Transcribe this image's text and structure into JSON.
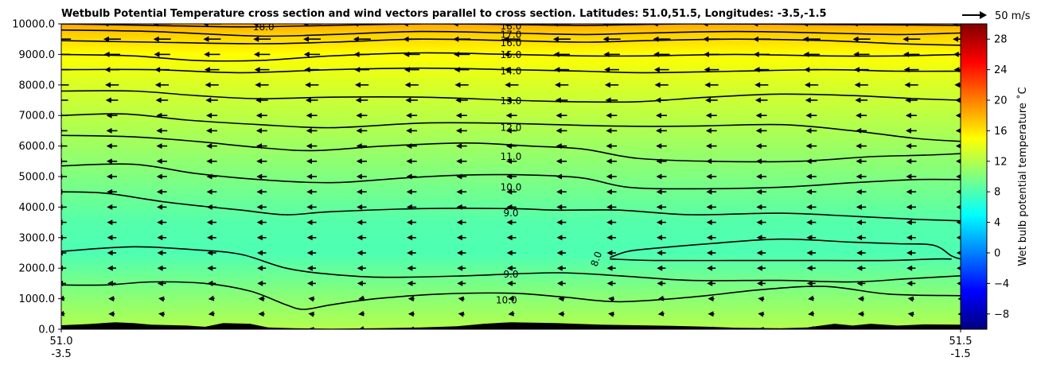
{
  "chart_data": {
    "type": "heatmap",
    "title": "Wetbulb Potential Temperature cross section and wind vectors parallel to cross section. Latitudes: 51.0,51.5, Longitudes: -3.5,-1.5",
    "xlabel": "",
    "ylabel": "",
    "xlim": [
      0,
      1
    ],
    "ylim": [
      0,
      10000
    ],
    "x_ticks": [
      {
        "pos": 0,
        "line1": "51.0",
        "line2": "-3.5"
      },
      {
        "pos": 1,
        "line1": "51.5",
        "line2": "-1.5"
      }
    ],
    "y_ticks": [
      "0.0",
      "1000.0",
      "2000.0",
      "3000.0",
      "4000.0",
      "5000.0",
      "6000.0",
      "7000.0",
      "8000.0",
      "9000.0",
      "10000.0"
    ],
    "colorbar": {
      "label": "Wet bulb potential temperature $^\\circ$C",
      "label_text": "Wet bulb potential temperature ˚C",
      "range": [
        -10,
        30
      ],
      "ticks": [
        "-8",
        "-4",
        "0",
        "4",
        "8",
        "12",
        "16",
        "20",
        "24",
        "28"
      ],
      "colormap": "jet"
    },
    "quiver_key": {
      "label": "50 m/s"
    },
    "wind": {
      "direction": "westward",
      "typical_speed_ms": 30
    },
    "surface_color": "#000000",
    "contours": [
      {
        "label": "10.0",
        "points": [
          [
            0.0,
            1450
          ],
          [
            0.05,
            1450
          ],
          [
            0.1,
            1550
          ],
          [
            0.16,
            1500
          ],
          [
            0.21,
            1250
          ],
          [
            0.25,
            800
          ],
          [
            0.27,
            650
          ],
          [
            0.3,
            800
          ],
          [
            0.35,
            1000
          ],
          [
            0.42,
            1150
          ],
          [
            0.5,
            1180
          ],
          [
            0.56,
            1050
          ],
          [
            0.62,
            900
          ],
          [
            0.7,
            1050
          ],
          [
            0.78,
            1300
          ],
          [
            0.85,
            1400
          ],
          [
            0.92,
            1150
          ],
          [
            1.0,
            1100
          ]
        ]
      },
      {
        "label": "9.0",
        "points": [
          [
            0.0,
            2550
          ],
          [
            0.08,
            2700
          ],
          [
            0.15,
            2600
          ],
          [
            0.2,
            2450
          ],
          [
            0.25,
            2000
          ],
          [
            0.3,
            1800
          ],
          [
            0.36,
            1700
          ],
          [
            0.45,
            1750
          ],
          [
            0.55,
            1850
          ],
          [
            0.62,
            1750
          ],
          [
            0.7,
            1600
          ],
          [
            0.8,
            1600
          ],
          [
            0.88,
            1550
          ],
          [
            0.94,
            1650
          ],
          [
            1.0,
            1750
          ]
        ]
      },
      {
        "label": "8.0",
        "points": [
          [
            0.61,
            2350
          ],
          [
            0.63,
            2550
          ],
          [
            0.66,
            2650
          ],
          [
            0.72,
            2800
          ],
          [
            0.8,
            2950
          ],
          [
            0.88,
            2850
          ],
          [
            0.93,
            2800
          ],
          [
            0.97,
            2750
          ],
          [
            0.99,
            2400
          ],
          [
            1.0,
            2300
          ]
        ]
      },
      {
        "label": "8.0",
        "points": [
          [
            0.61,
            2300
          ],
          [
            0.66,
            2250
          ],
          [
            0.75,
            2250
          ],
          [
            0.85,
            2250
          ],
          [
            0.92,
            2250
          ],
          [
            0.97,
            2300
          ],
          [
            0.99,
            2300
          ]
        ]
      },
      {
        "label": "9.0",
        "points": [
          [
            0.0,
            4500
          ],
          [
            0.05,
            4450
          ],
          [
            0.12,
            4150
          ],
          [
            0.2,
            3900
          ],
          [
            0.25,
            3750
          ],
          [
            0.3,
            3850
          ],
          [
            0.4,
            3950
          ],
          [
            0.5,
            3950
          ],
          [
            0.55,
            3900
          ],
          [
            0.62,
            3900
          ],
          [
            0.7,
            3750
          ],
          [
            0.8,
            3800
          ],
          [
            0.88,
            3700
          ],
          [
            0.95,
            3600
          ],
          [
            1.0,
            3550
          ]
        ]
      },
      {
        "label": "10.0",
        "points": [
          [
            0.0,
            5350
          ],
          [
            0.08,
            5400
          ],
          [
            0.15,
            5100
          ],
          [
            0.22,
            4900
          ],
          [
            0.3,
            4800
          ],
          [
            0.38,
            4950
          ],
          [
            0.45,
            5050
          ],
          [
            0.52,
            5050
          ],
          [
            0.58,
            4950
          ],
          [
            0.63,
            4650
          ],
          [
            0.7,
            4600
          ],
          [
            0.8,
            4650
          ],
          [
            0.88,
            4800
          ],
          [
            0.95,
            4900
          ],
          [
            1.0,
            4900
          ]
        ]
      },
      {
        "label": "11.0",
        "points": [
          [
            0.0,
            6350
          ],
          [
            0.08,
            6300
          ],
          [
            0.15,
            6150
          ],
          [
            0.22,
            5950
          ],
          [
            0.28,
            5850
          ],
          [
            0.36,
            6000
          ],
          [
            0.45,
            6100
          ],
          [
            0.52,
            6000
          ],
          [
            0.58,
            5900
          ],
          [
            0.64,
            5600
          ],
          [
            0.72,
            5500
          ],
          [
            0.82,
            5500
          ],
          [
            0.9,
            5650
          ],
          [
            0.96,
            5700
          ],
          [
            1.0,
            5750
          ]
        ]
      },
      {
        "label": "12.0",
        "points": [
          [
            0.0,
            7000
          ],
          [
            0.07,
            7050
          ],
          [
            0.14,
            6850
          ],
          [
            0.22,
            6700
          ],
          [
            0.3,
            6600
          ],
          [
            0.4,
            6750
          ],
          [
            0.48,
            6750
          ],
          [
            0.55,
            6700
          ],
          [
            0.62,
            6650
          ],
          [
            0.7,
            6650
          ],
          [
            0.8,
            6700
          ],
          [
            0.88,
            6500
          ],
          [
            0.95,
            6250
          ],
          [
            1.0,
            6150
          ]
        ]
      },
      {
        "label": "13.0",
        "points": [
          [
            0.0,
            7800
          ],
          [
            0.08,
            7800
          ],
          [
            0.15,
            7650
          ],
          [
            0.22,
            7550
          ],
          [
            0.3,
            7600
          ],
          [
            0.4,
            7600
          ],
          [
            0.5,
            7500
          ],
          [
            0.57,
            7450
          ],
          [
            0.64,
            7450
          ],
          [
            0.72,
            7600
          ],
          [
            0.8,
            7700
          ],
          [
            0.88,
            7650
          ],
          [
            0.95,
            7550
          ],
          [
            1.0,
            7500
          ]
        ]
      },
      {
        "label": "14.0",
        "points": [
          [
            0.0,
            8500
          ],
          [
            0.1,
            8500
          ],
          [
            0.2,
            8400
          ],
          [
            0.3,
            8500
          ],
          [
            0.4,
            8550
          ],
          [
            0.5,
            8500
          ],
          [
            0.58,
            8450
          ],
          [
            0.65,
            8400
          ],
          [
            0.75,
            8450
          ],
          [
            0.85,
            8500
          ],
          [
            0.93,
            8450
          ],
          [
            1.0,
            8450
          ]
        ]
      },
      {
        "label": "15.0",
        "points": [
          [
            0.0,
            9000
          ],
          [
            0.08,
            8950
          ],
          [
            0.15,
            8800
          ],
          [
            0.22,
            8800
          ],
          [
            0.3,
            8950
          ],
          [
            0.4,
            9050
          ],
          [
            0.5,
            9000
          ],
          [
            0.58,
            8950
          ],
          [
            0.65,
            8950
          ],
          [
            0.75,
            9000
          ],
          [
            0.85,
            8950
          ],
          [
            0.93,
            8950
          ],
          [
            1.0,
            9000
          ]
        ]
      },
      {
        "label": "16.0",
        "points": [
          [
            0.0,
            9450
          ],
          [
            0.1,
            9400
          ],
          [
            0.22,
            9350
          ],
          [
            0.3,
            9400
          ],
          [
            0.4,
            9500
          ],
          [
            0.5,
            9450
          ],
          [
            0.58,
            9400
          ],
          [
            0.65,
            9450
          ],
          [
            0.75,
            9500
          ],
          [
            0.85,
            9450
          ],
          [
            0.93,
            9350
          ],
          [
            1.0,
            9300
          ]
        ]
      },
      {
        "label": "17.0",
        "points": [
          [
            0.0,
            9800
          ],
          [
            0.1,
            9750
          ],
          [
            0.22,
            9600
          ],
          [
            0.3,
            9650
          ],
          [
            0.4,
            9750
          ],
          [
            0.5,
            9700
          ],
          [
            0.58,
            9650
          ],
          [
            0.65,
            9700
          ],
          [
            0.75,
            9750
          ],
          [
            0.85,
            9700
          ],
          [
            0.93,
            9650
          ],
          [
            1.0,
            9700
          ]
        ]
      },
      {
        "label": "18.0",
        "points": [
          [
            0.0,
            10000
          ],
          [
            0.1,
            9950
          ],
          [
            0.2,
            9900
          ],
          [
            0.3,
            9950
          ],
          [
            0.4,
            10000
          ],
          [
            0.5,
            9980
          ],
          [
            0.58,
            9950
          ],
          [
            0.7,
            10000
          ],
          [
            0.85,
            9980
          ],
          [
            1.0,
            9950
          ]
        ]
      }
    ],
    "contour_labels": [
      {
        "text": "18.0",
        "x": 0.225,
        "y": 9900,
        "rot": 0
      },
      {
        "text": "18.0",
        "x": 0.5,
        "y": 9920,
        "rot": 0
      },
      {
        "text": "17.0",
        "x": 0.5,
        "y": 9650,
        "rot": 0
      },
      {
        "text": "16.0",
        "x": 0.5,
        "y": 9380,
        "rot": 0
      },
      {
        "text": "15.0",
        "x": 0.5,
        "y": 8980,
        "rot": 0
      },
      {
        "text": "14.0",
        "x": 0.5,
        "y": 8450,
        "rot": 0
      },
      {
        "text": "13.0",
        "x": 0.5,
        "y": 7480,
        "rot": 0
      },
      {
        "text": "12.0",
        "x": 0.5,
        "y": 6600,
        "rot": 0
      },
      {
        "text": "11.0",
        "x": 0.5,
        "y": 5650,
        "rot": 0
      },
      {
        "text": "10.0",
        "x": 0.5,
        "y": 4650,
        "rot": 0
      },
      {
        "text": "9.0",
        "x": 0.5,
        "y": 3800,
        "rot": 0
      },
      {
        "text": "9.0",
        "x": 0.5,
        "y": 1800,
        "rot": 0
      },
      {
        "text": "10.0",
        "x": 0.495,
        "y": 950,
        "rot": 0
      },
      {
        "text": "8.0",
        "x": 0.595,
        "y": 2300,
        "rot": -70
      }
    ],
    "field_levels": [
      {
        "y": 0,
        "temp": 12.0
      },
      {
        "y": 1000,
        "temp": 10.5
      },
      {
        "y": 2500,
        "temp": 8.0
      },
      {
        "y": 3500,
        "temp": 8.3
      },
      {
        "y": 5000,
        "temp": 10.0
      },
      {
        "y": 6500,
        "temp": 11.8
      },
      {
        "y": 8000,
        "temp": 13.5
      },
      {
        "y": 9000,
        "temp": 15.0
      },
      {
        "y": 9700,
        "temp": 17.0
      },
      {
        "y": 10000,
        "temp": 18.5
      }
    ],
    "surface": [
      [
        0.0,
        130
      ],
      [
        0.03,
        170
      ],
      [
        0.06,
        230
      ],
      [
        0.08,
        200
      ],
      [
        0.1,
        150
      ],
      [
        0.14,
        120
      ],
      [
        0.16,
        80
      ],
      [
        0.18,
        200
      ],
      [
        0.21,
        180
      ],
      [
        0.23,
        60
      ],
      [
        0.26,
        30
      ],
      [
        0.3,
        20
      ],
      [
        0.35,
        30
      ],
      [
        0.4,
        60
      ],
      [
        0.44,
        100
      ],
      [
        0.47,
        180
      ],
      [
        0.5,
        230
      ],
      [
        0.55,
        200
      ],
      [
        0.6,
        150
      ],
      [
        0.64,
        130
      ],
      [
        0.68,
        110
      ],
      [
        0.72,
        80
      ],
      [
        0.75,
        50
      ],
      [
        0.8,
        30
      ],
      [
        0.83,
        60
      ],
      [
        0.86,
        180
      ],
      [
        0.88,
        120
      ],
      [
        0.9,
        180
      ],
      [
        0.93,
        120
      ],
      [
        0.96,
        160
      ],
      [
        1.0,
        150
      ]
    ]
  }
}
